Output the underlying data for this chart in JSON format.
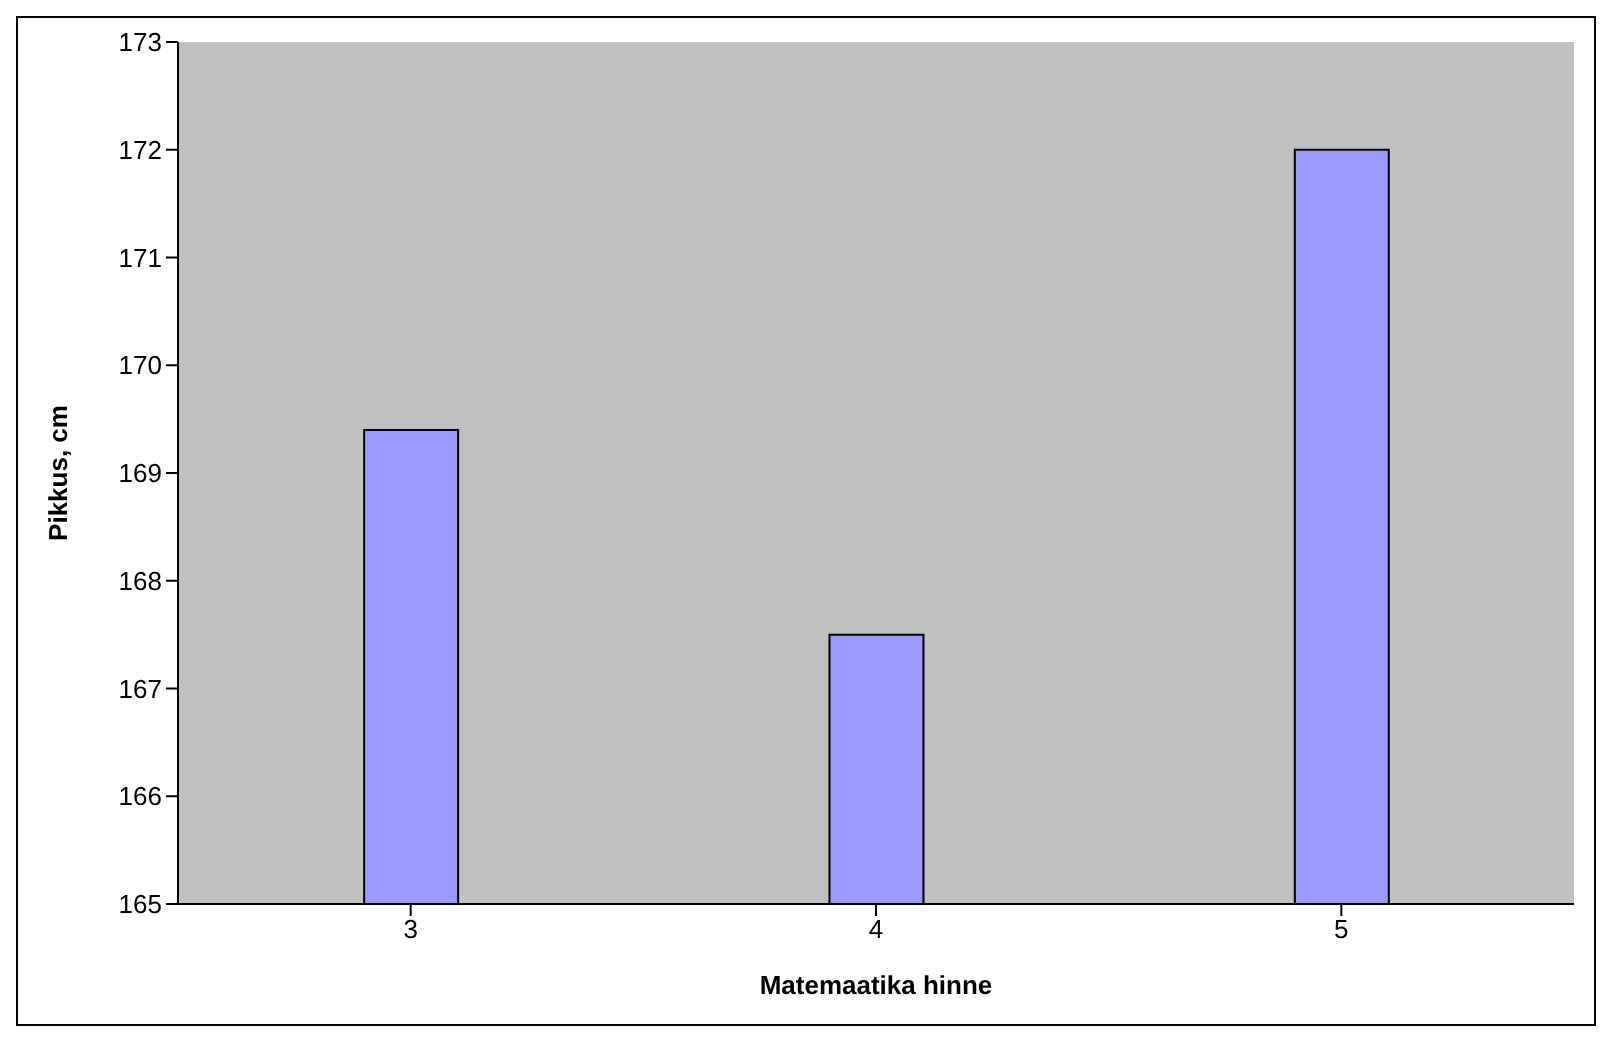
{
  "chart_data": {
    "type": "bar",
    "xlabel": "Matemaatika hinne",
    "ylabel": "Pikkus, cm",
    "categories": [
      "3",
      "4",
      "5"
    ],
    "values": [
      169.4,
      167.5,
      172.0
    ],
    "color": "#9999ff",
    "ylim": [
      165,
      173
    ],
    "yticks": [
      165,
      166,
      167,
      168,
      169,
      170,
      171,
      172,
      173
    ],
    "grid": false
  }
}
